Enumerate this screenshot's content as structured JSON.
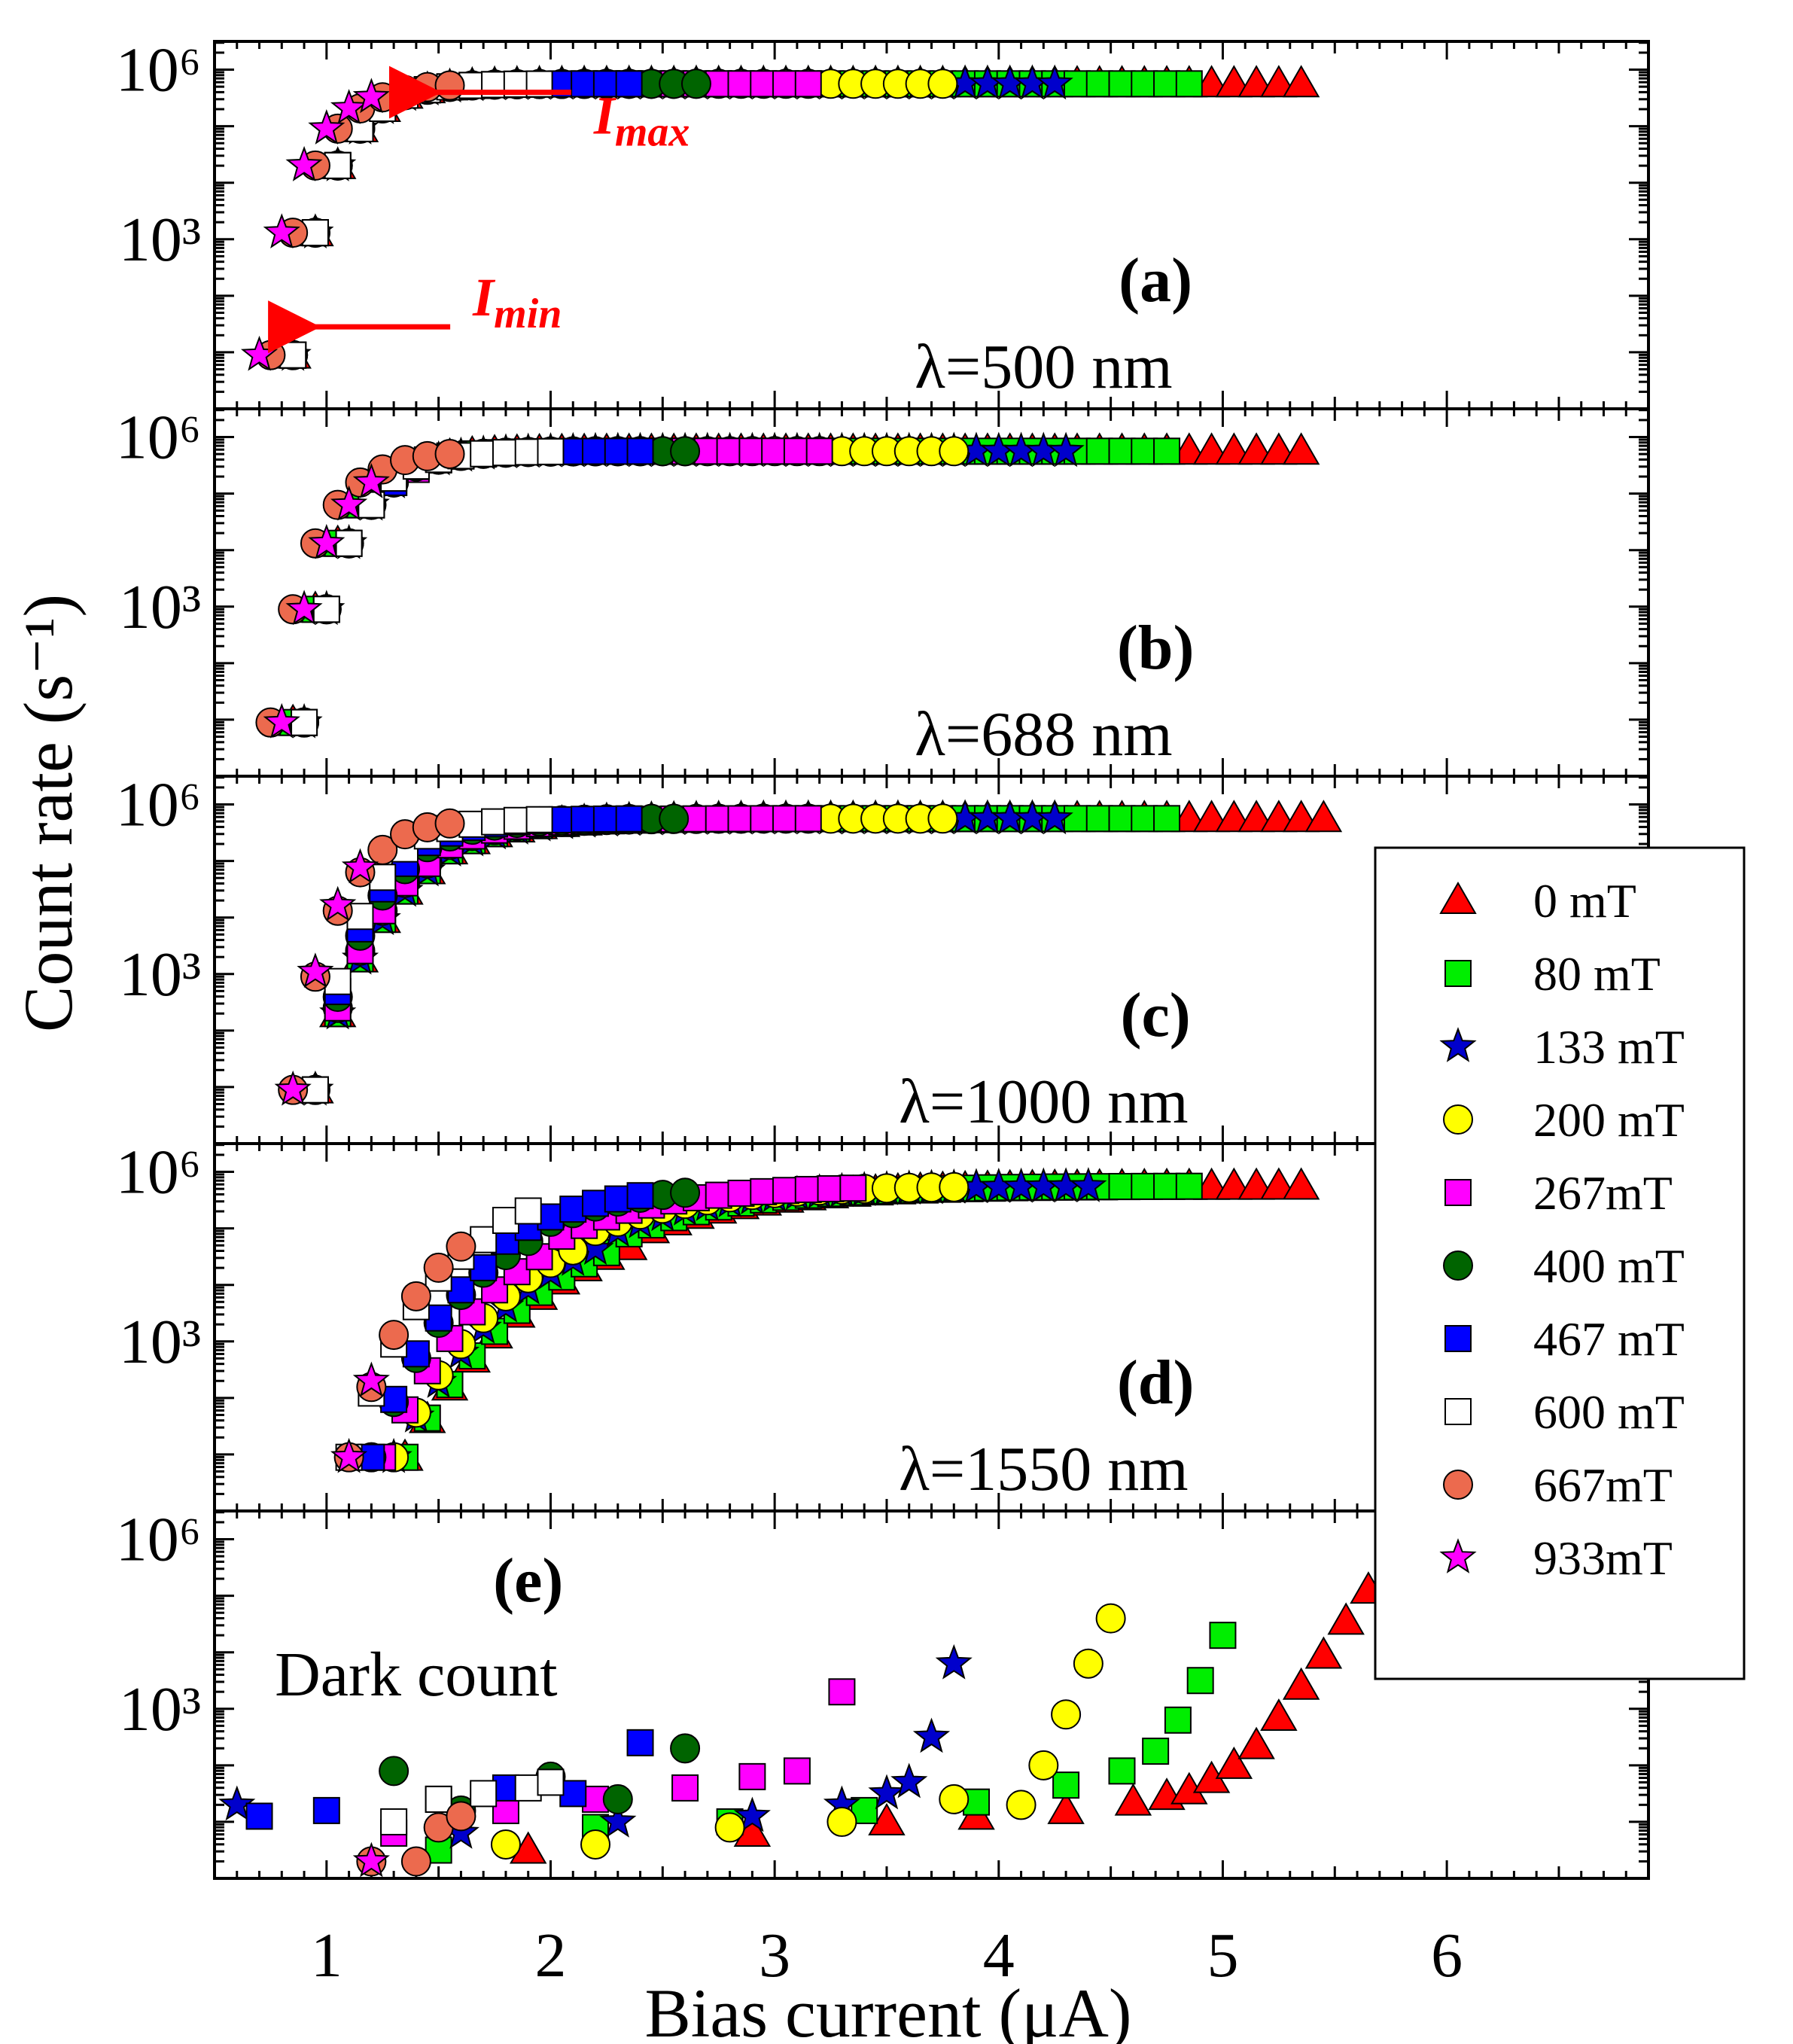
{
  "chart_data": {
    "type": "scatter",
    "ylabel": "Count rate (s⁻¹)",
    "xlabel": "Bias current (μA)",
    "x_ticks": [
      "1",
      "2",
      "3",
      "4",
      "5",
      "6"
    ],
    "xlim": [
      0.5,
      6.9
    ],
    "y_scale": "log",
    "ylim_exponent": [
      0,
      6.5
    ],
    "y_tick_labels": [
      "10³",
      "10⁶"
    ],
    "y_tick_exponents": [
      3,
      6
    ],
    "legend": {
      "position": "right",
      "entries": [
        {
          "label": "0 mT",
          "color": "#ff0000",
          "marker": "triangle"
        },
        {
          "label": "80 mT",
          "color": "#00ee00",
          "marker": "square"
        },
        {
          "label": "133 mT",
          "color": "#0000cc",
          "marker": "star"
        },
        {
          "label": "200 mT",
          "color": "#ffff00",
          "marker": "circle"
        },
        {
          "label": "267mT",
          "color": "#ff00ff",
          "marker": "square"
        },
        {
          "label": "400 mT",
          "color": "#006400",
          "marker": "circle"
        },
        {
          "label": "467 mT",
          "color": "#0000ff",
          "marker": "square"
        },
        {
          "label": "600 mT",
          "color": "#ffffff",
          "marker": "square"
        },
        {
          "label": "667mT",
          "color": "#ec6a4e",
          "marker": "circle"
        },
        {
          "label": "933mT",
          "color": "#ff00ff",
          "marker": "star"
        }
      ]
    },
    "panels": [
      {
        "id": "a",
        "label": "(a)",
        "wavelength": "λ=500 nm",
        "annotations": [
          {
            "text": "I",
            "sub": "max",
            "arrow_to_x": 1.42,
            "arrow_to_y": 5.6
          },
          {
            "text": "I",
            "sub": "min",
            "arrow_to_x": 0.88,
            "arrow_to_y": 1.45
          }
        ],
        "series": [
          {
            "name": "0 mT",
            "x0": 1.0,
            "xmax": 5.4,
            "sharpness": 1.0,
            "onset": 0.85
          },
          {
            "name": "80 mT",
            "x0": 1.0,
            "xmax": 4.9,
            "sharpness": 1.0,
            "onset": 0.85
          },
          {
            "name": "133 mT",
            "x0": 1.0,
            "xmax": 4.3,
            "sharpness": 1.0,
            "onset": 0.85
          },
          {
            "name": "200 mT",
            "x0": 1.0,
            "xmax": 3.8,
            "sharpness": 1.0,
            "onset": 0.85
          },
          {
            "name": "267mT",
            "x0": 1.0,
            "xmax": 3.2,
            "sharpness": 1.0,
            "onset": 0.85
          },
          {
            "name": "400 mT",
            "x0": 1.0,
            "xmax": 2.7,
            "sharpness": 1.0,
            "onset": 0.85
          },
          {
            "name": "467 mT",
            "x0": 1.0,
            "xmax": 2.4,
            "sharpness": 1.0,
            "onset": 0.85
          },
          {
            "name": "600 mT",
            "x0": 1.0,
            "xmax": 2.0,
            "sharpness": 1.0,
            "onset": 0.85
          },
          {
            "name": "667mT",
            "x0": 1.0,
            "xmax": 1.6,
            "sharpness": 1.0,
            "onset": 0.75
          },
          {
            "name": "933mT",
            "x0": 1.0,
            "xmax": 1.2,
            "sharpness": 1.0,
            "onset": 0.7
          }
        ]
      },
      {
        "id": "b",
        "label": "(b)",
        "wavelength": "λ=688 nm",
        "series": [
          {
            "name": "0 mT",
            "x0": 1.05,
            "xmax": 5.4,
            "sharpness": 0.9,
            "onset": 0.85
          },
          {
            "name": "80 mT",
            "x0": 1.05,
            "xmax": 4.8,
            "sharpness": 0.9,
            "onset": 0.85
          },
          {
            "name": "133 mT",
            "x0": 1.05,
            "xmax": 4.3,
            "sharpness": 0.9,
            "onset": 0.9
          },
          {
            "name": "200 mT",
            "x0": 1.05,
            "xmax": 3.8,
            "sharpness": 0.9,
            "onset": 0.9
          },
          {
            "name": "267mT",
            "x0": 1.1,
            "xmax": 3.2,
            "sharpness": 0.9,
            "onset": 0.9
          },
          {
            "name": "400 mT",
            "x0": 1.05,
            "xmax": 2.6,
            "sharpness": 0.9,
            "onset": 0.9
          },
          {
            "name": "467 mT",
            "x0": 1.05,
            "xmax": 2.4,
            "sharpness": 0.9,
            "onset": 0.9
          },
          {
            "name": "600 mT",
            "x0": 1.0,
            "xmax": 2.0,
            "sharpness": 0.9,
            "onset": 0.9
          },
          {
            "name": "667mT",
            "x0": 1.0,
            "xmax": 1.6,
            "sharpness": 0.9,
            "onset": 0.75
          },
          {
            "name": "933mT",
            "x0": 0.95,
            "xmax": 1.2,
            "sharpness": 0.9,
            "onset": 0.8
          }
        ]
      },
      {
        "id": "c",
        "label": "(c)",
        "wavelength": "λ=1000 nm",
        "series": [
          {
            "name": "0 mT",
            "x0": 1.25,
            "xmax": 5.5,
            "sharpness": 0.55,
            "onset": 0.95
          },
          {
            "name": "80 mT",
            "x0": 1.25,
            "xmax": 4.8,
            "sharpness": 0.55,
            "onset": 0.95
          },
          {
            "name": "133 mT",
            "x0": 1.25,
            "xmax": 4.3,
            "sharpness": 0.55,
            "onset": 0.95
          },
          {
            "name": "200 mT",
            "x0": 1.2,
            "xmax": 3.8,
            "sharpness": 0.6,
            "onset": 0.95
          },
          {
            "name": "267mT",
            "x0": 1.2,
            "xmax": 3.2,
            "sharpness": 0.6,
            "onset": 0.95
          },
          {
            "name": "400 mT",
            "x0": 1.15,
            "xmax": 2.6,
            "sharpness": 0.7,
            "onset": 0.95
          },
          {
            "name": "467 mT",
            "x0": 1.1,
            "xmax": 2.4,
            "sharpness": 0.75,
            "onset": 0.95
          },
          {
            "name": "600 mT",
            "x0": 1.05,
            "xmax": 2.0,
            "sharpness": 0.85,
            "onset": 0.95
          },
          {
            "name": "667mT",
            "x0": 1.05,
            "xmax": 1.6,
            "sharpness": 0.9,
            "onset": 0.85
          },
          {
            "name": "933mT",
            "x0": 1.0,
            "xmax": 1.2,
            "sharpness": 0.95,
            "onset": 0.85
          }
        ]
      },
      {
        "id": "d",
        "label": "(d)",
        "wavelength": "λ=1550 nm",
        "series": [
          {
            "name": "0 mT",
            "x0": 2.1,
            "xmax": 5.4,
            "sharpness": 0.25,
            "onset": 1.35
          },
          {
            "name": "80 mT",
            "x0": 2.0,
            "xmax": 4.9,
            "sharpness": 0.26,
            "onset": 1.35
          },
          {
            "name": "133 mT",
            "x0": 1.95,
            "xmax": 4.4,
            "sharpness": 0.27,
            "onset": 1.3
          },
          {
            "name": "200 mT",
            "x0": 1.85,
            "xmax": 3.8,
            "sharpness": 0.3,
            "onset": 1.3
          },
          {
            "name": "267mT",
            "x0": 1.75,
            "xmax": 3.4,
            "sharpness": 0.32,
            "onset": 1.25
          },
          {
            "name": "400 mT",
            "x0": 1.6,
            "xmax": 2.6,
            "sharpness": 0.38,
            "onset": 1.2
          },
          {
            "name": "467 mT",
            "x0": 1.5,
            "xmax": 2.4,
            "sharpness": 0.4,
            "onset": 1.2
          },
          {
            "name": "600 mT",
            "x0": 1.45,
            "xmax": 1.9,
            "sharpness": 0.45,
            "onset": 1.1
          },
          {
            "name": "667mT",
            "x0": 1.4,
            "xmax": 1.6,
            "sharpness": 0.5,
            "onset": 1.1
          },
          {
            "name": "933mT",
            "x0": 1.3,
            "xmax": 1.2,
            "sharpness": 0.55,
            "onset": 1.1
          }
        ]
      },
      {
        "id": "e",
        "label": "(e)",
        "wavelength": "Dark count",
        "points": [
          {
            "name": "0 mT",
            "x": [
              1.9,
              2.9,
              3.5,
              3.9,
              4.3,
              4.6,
              4.75,
              4.85,
              4.95,
              5.05,
              5.15,
              5.25,
              5.35,
              5.45,
              5.55,
              5.65
            ],
            "y": [
              0.5,
              0.8,
              1.0,
              1.1,
              1.2,
              1.35,
              1.45,
              1.55,
              1.75,
              2.0,
              2.35,
              2.85,
              3.4,
              3.95,
              4.55,
              5.1
            ]
          },
          {
            "name": "80 mT",
            "x": [
              1.5,
              2.2,
              2.8,
              3.4,
              3.9,
              4.3,
              4.55,
              4.7,
              4.8,
              4.9,
              5.0
            ],
            "y": [
              0.5,
              0.9,
              1.0,
              1.2,
              1.35,
              1.65,
              1.9,
              2.25,
              2.8,
              3.5,
              4.3
            ]
          },
          {
            "name": "133 mT",
            "x": [
              0.6,
              1.6,
              2.3,
              2.9,
              3.3,
              3.5,
              3.6,
              3.7,
              3.8
            ],
            "y": [
              1.3,
              0.8,
              1.0,
              1.1,
              1.3,
              1.5,
              1.7,
              2.5,
              3.8
            ]
          },
          {
            "name": "200 mT",
            "x": [
              1.8,
              2.2,
              2.8,
              3.3,
              3.8,
              4.1,
              4.2,
              4.3,
              4.4,
              4.5
            ],
            "y": [
              0.6,
              0.6,
              0.9,
              1.0,
              1.4,
              1.3,
              2.0,
              2.9,
              3.8,
              4.6
            ]
          },
          {
            "name": "267mT",
            "x": [
              1.3,
              1.8,
              2.2,
              2.6,
              2.9,
              3.1,
              3.3
            ],
            "y": [
              0.8,
              1.2,
              1.4,
              1.6,
              1.8,
              1.9,
              3.3
            ]
          },
          {
            "name": "400 mT",
            "x": [
              1.3,
              1.6,
              2.0,
              2.3,
              2.6
            ],
            "y": [
              1.9,
              1.2,
              1.8,
              1.4,
              2.3
            ]
          },
          {
            "name": "467 mT",
            "x": [
              0.7,
              1.0,
              1.5,
              1.8,
              2.1,
              2.4
            ],
            "y": [
              1.1,
              1.2,
              1.4,
              1.6,
              1.5,
              2.4
            ]
          },
          {
            "name": "600 mT",
            "x": [
              1.3,
              1.5,
              1.7,
              1.9,
              2.0
            ],
            "y": [
              1.0,
              1.4,
              1.5,
              1.6,
              1.7
            ]
          },
          {
            "name": "667mT",
            "x": [
              1.2,
              1.4,
              1.5,
              1.6
            ],
            "y": [
              0.3,
              0.3,
              0.9,
              1.1
            ]
          },
          {
            "name": "933mT",
            "x": [
              1.2
            ],
            "y": [
              0.3
            ]
          }
        ]
      }
    ]
  }
}
